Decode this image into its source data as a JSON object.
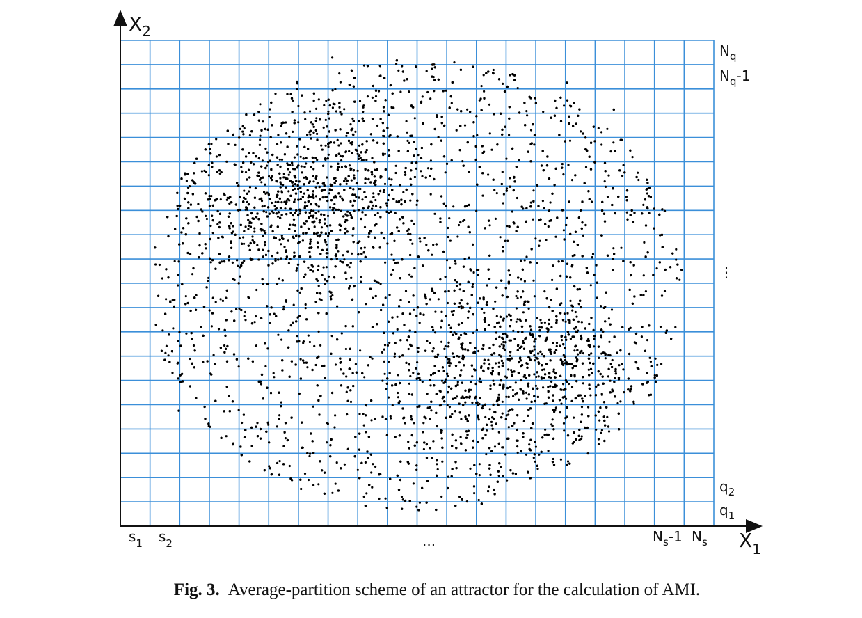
{
  "figure": {
    "axis_y": {
      "base": "X",
      "sub": "2"
    },
    "axis_x": {
      "base": "X",
      "sub": "1"
    },
    "row_labels": {
      "top": {
        "base": "N",
        "sub": "q"
      },
      "second": {
        "base": "N",
        "sub": "q",
        "suffix": "-1"
      },
      "dots": "⋮",
      "q2": {
        "base": "q",
        "sub": "2"
      },
      "q1": {
        "base": "q",
        "sub": "1"
      }
    },
    "col_labels": {
      "s1": {
        "base": "s",
        "sub": "1"
      },
      "s2": {
        "base": "s",
        "sub": "2"
      },
      "dots": "...",
      "ns1": {
        "base": "N",
        "sub": "s",
        "suffix": "-1"
      },
      "ns": {
        "base": "N",
        "sub": "s"
      }
    },
    "caption": {
      "label": "Fig. 3.",
      "text": "Average-partition scheme of an attractor for the calculation of AMI."
    }
  }
}
